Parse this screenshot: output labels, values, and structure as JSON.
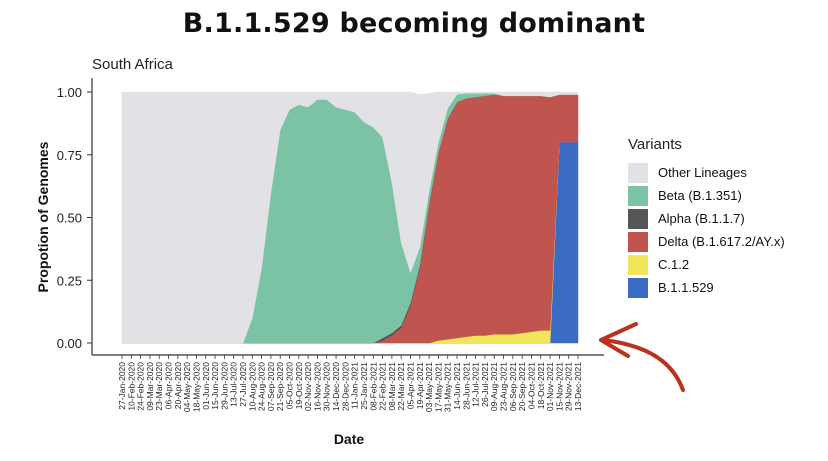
{
  "title": "B.1.1.529 becoming dominant",
  "subtitle": "South Africa",
  "colors": {
    "Other Lineages": "#e2e2e6",
    "Beta (B.1.351)": "#7cc3a5",
    "Alpha (B.1.1.7)": "#555555",
    "Delta (B.1.617.2/AY.x)": "#c05550",
    "C.1.2": "#f2e55c",
    "B.1.1.529": "#3a6bc2",
    "annotation_arrow": "#b8321e"
  },
  "chart_data": {
    "type": "area",
    "stacked": true,
    "xlabel": "Date",
    "ylabel": "Propotion of Genomes",
    "ylim": [
      0,
      1
    ],
    "yticks": [
      "0.00",
      "0.25",
      "0.50",
      "0.75",
      "1.00"
    ],
    "x": [
      "27-Jan-2020",
      "10-Feb-2020",
      "24-Feb-2020",
      "09-Mar-2020",
      "23-Mar-2020",
      "06-Apr-2020",
      "20-Apr-2020",
      "04-May-2020",
      "18-May-2020",
      "01-Jun-2020",
      "15-Jun-2020",
      "29-Jun-2020",
      "13-Jul-2020",
      "27-Jul-2020",
      "10-Aug-2020",
      "24-Aug-2020",
      "07-Sep-2020",
      "21-Sep-2020",
      "05-Oct-2020",
      "19-Oct-2020",
      "02-Nov-2020",
      "16-Nov-2020",
      "30-Nov-2020",
      "14-Dec-2020",
      "28-Dec-2020",
      "11-Jan-2021",
      "25-Jan-2021",
      "08-Feb-2021",
      "22-Feb-2021",
      "08-Mar-2021",
      "22-Mar-2021",
      "05-Apr-2021",
      "19-Apr-2021",
      "03-May-2021",
      "17-May-2021",
      "31-May-2021",
      "14-Jun-2021",
      "28-Jun-2021",
      "12-Jul-2021",
      "26-Jul-2021",
      "09-Aug-2021",
      "23-Aug-2021",
      "06-Sep-2021",
      "20-Sep-2021",
      "04-Oct-2021",
      "18-Oct-2021",
      "01-Nov-2021",
      "15-Nov-2021",
      "29-Nov-2021",
      "13-Dec-2021"
    ],
    "series": [
      {
        "name": "B.1.1.529",
        "values": [
          0,
          0,
          0,
          0,
          0,
          0,
          0,
          0,
          0,
          0,
          0,
          0,
          0,
          0,
          0,
          0,
          0,
          0,
          0,
          0,
          0,
          0,
          0,
          0,
          0,
          0,
          0,
          0,
          0,
          0,
          0,
          0,
          0,
          0,
          0,
          0,
          0,
          0,
          0,
          0,
          0,
          0,
          0,
          0,
          0,
          0,
          0,
          0.8,
          0.8,
          0.8
        ]
      },
      {
        "name": "C.1.2",
        "values": [
          0,
          0,
          0,
          0,
          0,
          0,
          0,
          0,
          0,
          0,
          0,
          0,
          0,
          0,
          0,
          0,
          0,
          0,
          0,
          0,
          0,
          0,
          0,
          0,
          0,
          0,
          0,
          0,
          0,
          0,
          0,
          0,
          0,
          0,
          0.01,
          0.015,
          0.02,
          0.025,
          0.03,
          0.03,
          0.035,
          0.035,
          0.035,
          0.04,
          0.045,
          0.05,
          0.05,
          0,
          0,
          0
        ]
      },
      {
        "name": "Delta (B.1.617.2/AY.x)",
        "values": [
          0,
          0,
          0,
          0,
          0,
          0,
          0,
          0,
          0,
          0,
          0,
          0,
          0,
          0,
          0,
          0,
          0,
          0,
          0,
          0,
          0,
          0,
          0,
          0,
          0,
          0,
          0,
          0,
          0.01,
          0.03,
          0.06,
          0.15,
          0.3,
          0.55,
          0.75,
          0.88,
          0.94,
          0.95,
          0.95,
          0.955,
          0.955,
          0.95,
          0.95,
          0.945,
          0.94,
          0.935,
          0.93,
          0.19,
          0.19,
          0.19
        ]
      },
      {
        "name": "Alpha (B.1.1.7)",
        "values": [
          0,
          0,
          0,
          0,
          0,
          0,
          0,
          0,
          0,
          0,
          0,
          0,
          0,
          0,
          0,
          0,
          0,
          0,
          0,
          0,
          0,
          0,
          0,
          0,
          0,
          0,
          0,
          0,
          0.01,
          0.01,
          0.01,
          0.01,
          0.01,
          0.005,
          0,
          0,
          0,
          0,
          0,
          0,
          0,
          0,
          0,
          0,
          0,
          0,
          0,
          0,
          0,
          0
        ]
      },
      {
        "name": "Beta (B.1.351)",
        "values": [
          0,
          0,
          0,
          0,
          0,
          0,
          0,
          0,
          0,
          0,
          0,
          0,
          0,
          0,
          0.1,
          0.3,
          0.6,
          0.85,
          0.93,
          0.95,
          0.94,
          0.97,
          0.97,
          0.94,
          0.93,
          0.92,
          0.88,
          0.86,
          0.8,
          0.6,
          0.33,
          0.12,
          0.07,
          0.05,
          0.04,
          0.04,
          0.03,
          0.02,
          0.015,
          0.01,
          0.005,
          0,
          0,
          0,
          0,
          0,
          0,
          0,
          0,
          0
        ]
      },
      {
        "name": "Other Lineages",
        "values": [
          1,
          1,
          1,
          1,
          1,
          1,
          1,
          1,
          1,
          1,
          1,
          1,
          1,
          1,
          0.9,
          0.7,
          0.4,
          0.15,
          0.07,
          0.05,
          0.06,
          0.03,
          0.03,
          0.06,
          0.07,
          0.08,
          0.12,
          0.14,
          0.18,
          0.36,
          0.6,
          0.72,
          0.61,
          0.39,
          0.2,
          0.065,
          0.01,
          0.005,
          0.005,
          0.005,
          0.005,
          0.015,
          0.015,
          0.015,
          0.015,
          0.015,
          0.02,
          0.01,
          0.01,
          0.01
        ]
      }
    ],
    "legend": {
      "title": "Variants",
      "placement": "right",
      "entries": [
        "Other Lineages",
        "Beta (B.1.351)",
        "Alpha (B.1.1.7)",
        "Delta (B.1.617.2/AY.x)",
        "C.1.2",
        "B.1.1.529"
      ]
    }
  }
}
